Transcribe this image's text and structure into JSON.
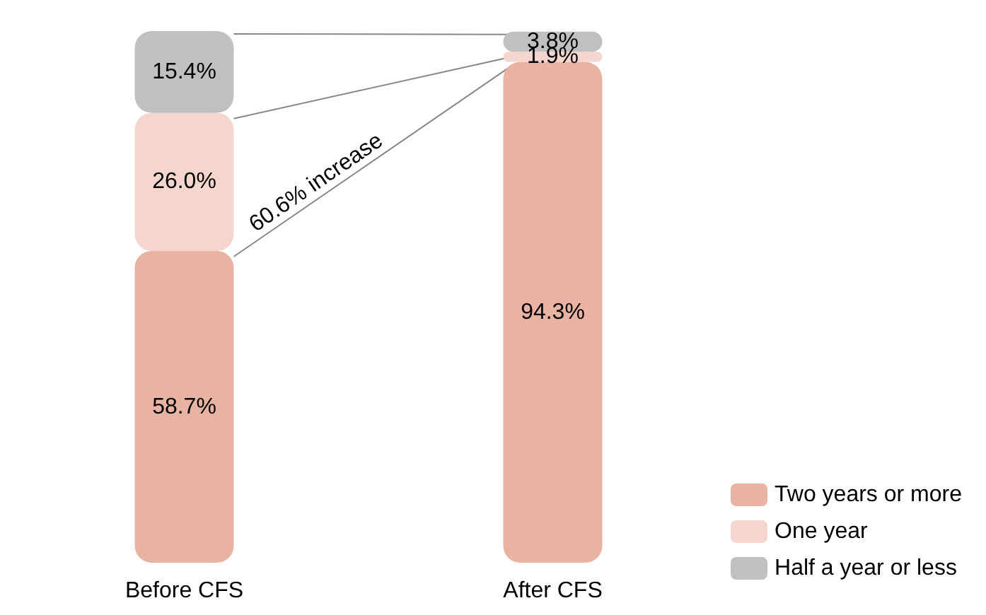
{
  "chart_data": {
    "type": "bar",
    "stacked": true,
    "categories": [
      "Before CFS",
      "After CFS"
    ],
    "series": [
      {
        "name": "Two years or more",
        "color": "#e8b3a3",
        "values": [
          58.7,
          94.3
        ],
        "value_labels": [
          "58.7%",
          "94.3%"
        ]
      },
      {
        "name": "One year",
        "color": "#f4d6cf",
        "values": [
          26.0,
          1.9
        ],
        "value_labels": [
          "26.0%",
          "1.9%"
        ]
      },
      {
        "name": "Half a year or less",
        "color": "#c0c0c0",
        "values": [
          15.4,
          3.8
        ],
        "value_labels": [
          "15.4%",
          "3.8%"
        ]
      }
    ],
    "annotations": [
      "60.6% increase"
    ],
    "legend": "bottom right",
    "tick_labels": "x"
  }
}
